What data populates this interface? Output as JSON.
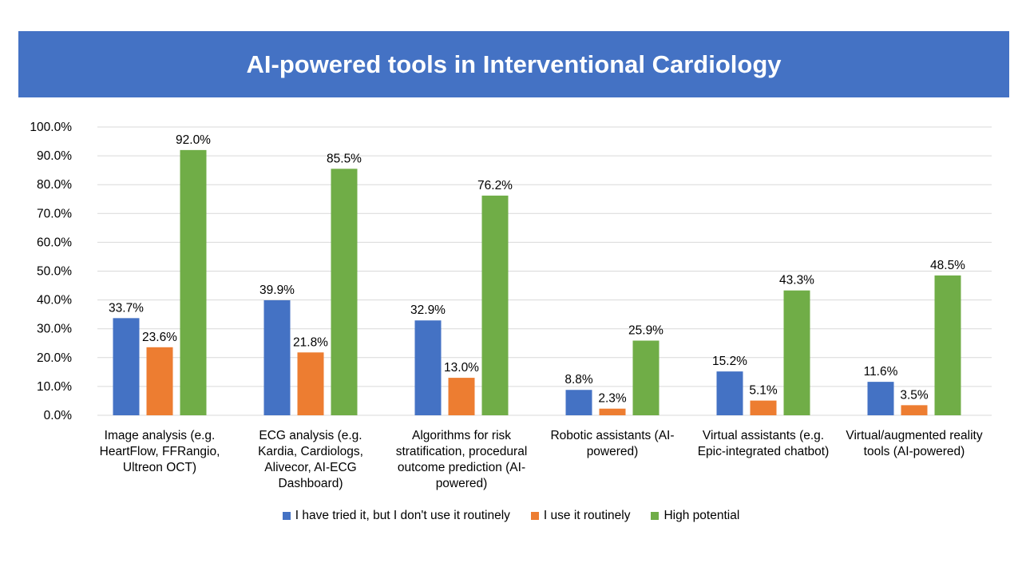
{
  "chart_data": {
    "type": "bar",
    "title": "AI-powered tools in Interventional Cardiology",
    "categories": [
      "Image analysis (e.g. HeartFlow, FFRangio, Ultreon OCT)",
      "ECG analysis (e.g. Kardia, Cardiologs, Alivecor, AI-ECG Dashboard)",
      "Algorithms for risk stratification, procedural outcome prediction  (AI-powered)",
      "Robotic assistants (AI-powered)",
      "Virtual assistants (e.g. Epic-integrated chatbot)",
      "Virtual/augmented reality tools (AI-powered)"
    ],
    "series": [
      {
        "name": "I have tried it, but I don't use it routinely",
        "color": "#4472c4",
        "values": [
          33.7,
          39.9,
          32.9,
          8.8,
          15.2,
          11.6
        ]
      },
      {
        "name": "I use it routinely",
        "color": "#ed7d31",
        "values": [
          23.6,
          21.8,
          13.0,
          2.3,
          5.1,
          3.5
        ]
      },
      {
        "name": "High potential",
        "color": "#70ad47",
        "values": [
          92.0,
          85.5,
          76.2,
          25.9,
          43.3,
          48.5
        ]
      }
    ],
    "yticks": [
      "0.0%",
      "10.0%",
      "20.0%",
      "30.0%",
      "40.0%",
      "50.0%",
      "60.0%",
      "70.0%",
      "80.0%",
      "90.0%",
      "100.0%"
    ],
    "ylim": [
      0,
      100
    ],
    "xlabel": "",
    "ylabel": "",
    "grid": true,
    "legend": "bottom",
    "data_labels": true
  }
}
